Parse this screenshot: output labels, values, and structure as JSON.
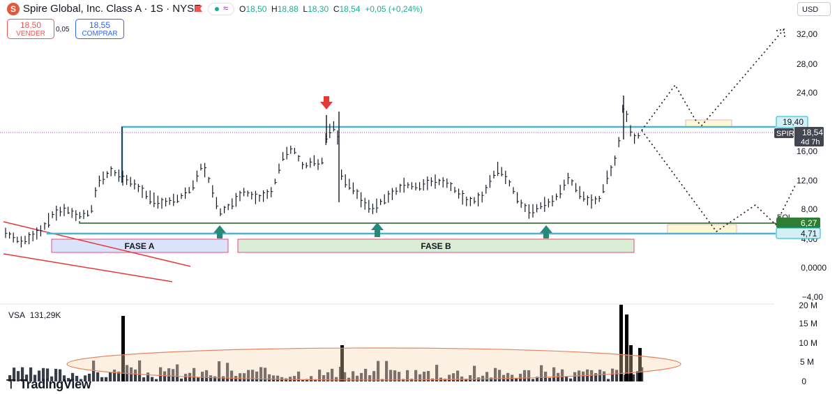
{
  "header": {
    "title": "Spire Global, Inc. Class A · 1S · NYSE",
    "logo_glyph": "S",
    "status_icon": "≈",
    "ohlc": {
      "o_label": "O",
      "o": "18,50",
      "h_label": "H",
      "h": "18,88",
      "l_label": "L",
      "l": "18,30",
      "c_label": "C",
      "c": "18,54",
      "change": "+0,05 (+0,24%)"
    },
    "currency": "USD",
    "sell": {
      "price": "18,50",
      "label": "VENDER"
    },
    "buy": {
      "price": "18,55",
      "label": "COMPRAR"
    },
    "spread": "0,05",
    "colors": {
      "sell": "#ef5350",
      "buy": "#2962ff",
      "up": "#22ab94"
    }
  },
  "axis": {
    "ticks": [
      "32,00",
      "28,00",
      "24,00",
      "20,00",
      "16,00",
      "12,00",
      "8,00",
      "4,00",
      "0,0000",
      "−4,00"
    ],
    "tags": [
      {
        "text": "19,40",
        "color": "#d4f0f5",
        "border": "#00bcd4",
        "fg": "#131722"
      },
      {
        "text": "SPIR",
        "color": "#434651",
        "fg": "#ffffff"
      },
      {
        "text": "18,54",
        "color": "#434651",
        "fg": "#ffffff"
      },
      {
        "text": "4d 7h",
        "color": "#434651",
        "fg": "#ffffff"
      },
      {
        "text": "6,27",
        "color": "#2e7d32",
        "fg": "#ffffff"
      },
      {
        "text": "4,71",
        "color": "#d4f0f5",
        "border": "#00bcd4",
        "fg": "#131722"
      }
    ],
    "volume_ticks": [
      "20 M",
      "15 M",
      "10 M",
      "5 M",
      "0"
    ]
  },
  "annotations": {
    "phase_a": "FASE A",
    "phase_b": "FASE B",
    "eql": "EQL"
  },
  "volume": {
    "label": "VSA",
    "value": "131,29K"
  },
  "brand": {
    "name": "TradingView",
    "glyph": "⊤"
  }
}
